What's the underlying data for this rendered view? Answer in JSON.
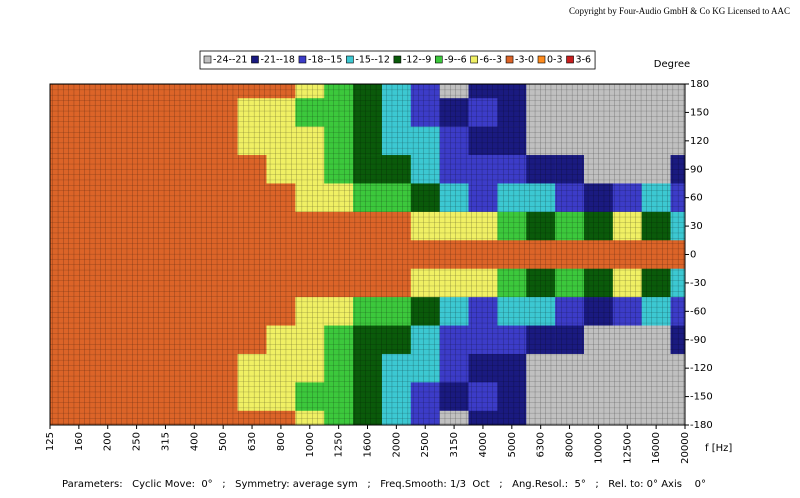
{
  "chart_data": {
    "type": "contour",
    "copyright": "Copyright by Four-Audio GmbH & Co KG   Licensed to AAC",
    "x_label": "f [Hz]",
    "y_label": "Degree",
    "footer": "Parameters:   Cyclic Move:  0°   ;   Symmetry: average sym   ;   Freq.Smooth: 1/3  Oct   ;   Ang.Resol.:  5°   ;   Rel. to: 0° Axis    0°",
    "categories": [
      125,
      160,
      200,
      250,
      315,
      400,
      500,
      630,
      800,
      1000,
      1250,
      1600,
      2000,
      2500,
      3150,
      4000,
      5000,
      6300,
      8000,
      10000,
      12500,
      16000,
      20000
    ],
    "ylim": [
      -180,
      180
    ],
    "yticks": [
      180,
      150,
      120,
      90,
      60,
      30,
      0,
      -30,
      -60,
      -90,
      -120,
      -150,
      -180
    ],
    "y": [
      180,
      150,
      120,
      90,
      60,
      30,
      0,
      -30,
      -60,
      -90,
      -120,
      -150,
      -180
    ],
    "levels": [
      -24,
      -21,
      -18,
      -15,
      -12,
      -9,
      -6,
      -3,
      0,
      3,
      6
    ],
    "legend": [
      {
        "name": "-24--21",
        "color": "#c0c0c0"
      },
      {
        "name": "-21--18",
        "color": "#1a1a80"
      },
      {
        "name": "-18--15",
        "color": "#3c3cc8"
      },
      {
        "name": "-15--12",
        "color": "#3cc8d2"
      },
      {
        "name": "-12--9",
        "color": "#0a5a0a"
      },
      {
        "name": "-9--6",
        "color": "#3cc83c"
      },
      {
        "name": "-6--3",
        "color": "#f0f064"
      },
      {
        "name": "-3-0",
        "color": "#dc6428"
      },
      {
        "name": "0-3",
        "color": "#ff8c1e"
      },
      {
        "name": "3-6",
        "color": "#c81e1e"
      }
    ],
    "z": [
      [
        -1.5,
        -1.5,
        -1.5,
        -1.5,
        -1.5,
        -1.5,
        -1.5,
        -1.5,
        -1.5,
        -4.5,
        -7.5,
        -10.5,
        -13.5,
        -16.5,
        -22.5,
        -19.5,
        -19.5,
        -22.5,
        -22.5,
        -22.5,
        -22.5,
        -22.5,
        -22.5
      ],
      [
        -1.5,
        -1.5,
        -1.5,
        -1.5,
        -1.5,
        -1.5,
        -1.5,
        -4.5,
        -4.5,
        -7.5,
        -7.5,
        -10.5,
        -13.5,
        -16.5,
        -19.5,
        -16.5,
        -19.5,
        -22.5,
        -22.5,
        -22.5,
        -22.5,
        -22.5,
        -22.5
      ],
      [
        -1.5,
        -1.5,
        -1.5,
        -1.5,
        -1.5,
        -1.5,
        -1.5,
        -4.5,
        -4.5,
        -4.5,
        -7.5,
        -10.5,
        -13.5,
        -13.5,
        -16.5,
        -19.5,
        -19.5,
        -22.5,
        -22.5,
        -22.5,
        -22.5,
        -22.5,
        -22.5
      ],
      [
        -1.5,
        -1.5,
        -1.5,
        -1.5,
        -1.5,
        -1.5,
        -1.5,
        -1.5,
        -4.5,
        -4.5,
        -7.5,
        -10.5,
        -10.5,
        -13.5,
        -16.5,
        -16.5,
        -16.5,
        -19.5,
        -19.5,
        -22.5,
        -22.5,
        -22.5,
        -19.5
      ],
      [
        -1.5,
        -1.5,
        -1.5,
        -1.5,
        -1.5,
        -1.5,
        -1.5,
        -1.5,
        -1.5,
        -4.5,
        -4.5,
        -7.5,
        -7.5,
        -10.5,
        -13.5,
        -16.5,
        -13.5,
        -13.5,
        -16.5,
        -19.5,
        -16.5,
        -13.5,
        -16.5
      ],
      [
        -1.5,
        -1.5,
        -1.5,
        -1.5,
        -1.5,
        -1.5,
        -1.5,
        -1.5,
        -1.5,
        -1.5,
        -1.5,
        -1.5,
        -1.5,
        -4.5,
        -4.5,
        -4.5,
        -7.5,
        -10.5,
        -7.5,
        -10.5,
        -4.5,
        -10.5,
        -13.5
      ],
      [
        -1.5,
        -1.5,
        -1.5,
        -1.5,
        -1.5,
        -1.5,
        -1.5,
        -1.5,
        -1.5,
        -1.5,
        -1.5,
        -1.5,
        -1.5,
        -1.5,
        -1.5,
        -1.5,
        -1.5,
        -1.5,
        -1.5,
        -1.5,
        -1.5,
        -1.5,
        -1.5
      ],
      [
        -1.5,
        -1.5,
        -1.5,
        -1.5,
        -1.5,
        -1.5,
        -1.5,
        -1.5,
        -1.5,
        -1.5,
        -1.5,
        -1.5,
        -1.5,
        -4.5,
        -4.5,
        -4.5,
        -7.5,
        -10.5,
        -7.5,
        -10.5,
        -4.5,
        -10.5,
        -13.5
      ],
      [
        -1.5,
        -1.5,
        -1.5,
        -1.5,
        -1.5,
        -1.5,
        -1.5,
        -1.5,
        -1.5,
        -4.5,
        -4.5,
        -7.5,
        -7.5,
        -10.5,
        -13.5,
        -16.5,
        -13.5,
        -13.5,
        -16.5,
        -19.5,
        -16.5,
        -13.5,
        -16.5
      ],
      [
        -1.5,
        -1.5,
        -1.5,
        -1.5,
        -1.5,
        -1.5,
        -1.5,
        -1.5,
        -4.5,
        -4.5,
        -7.5,
        -10.5,
        -10.5,
        -13.5,
        -16.5,
        -16.5,
        -16.5,
        -19.5,
        -19.5,
        -22.5,
        -22.5,
        -22.5,
        -19.5
      ],
      [
        -1.5,
        -1.5,
        -1.5,
        -1.5,
        -1.5,
        -1.5,
        -1.5,
        -4.5,
        -4.5,
        -4.5,
        -7.5,
        -10.5,
        -13.5,
        -13.5,
        -16.5,
        -19.5,
        -19.5,
        -22.5,
        -22.5,
        -22.5,
        -22.5,
        -22.5,
        -22.5
      ],
      [
        -1.5,
        -1.5,
        -1.5,
        -1.5,
        -1.5,
        -1.5,
        -1.5,
        -4.5,
        -4.5,
        -7.5,
        -7.5,
        -10.5,
        -13.5,
        -16.5,
        -19.5,
        -16.5,
        -19.5,
        -22.5,
        -22.5,
        -22.5,
        -22.5,
        -22.5,
        -22.5
      ],
      [
        -1.5,
        -1.5,
        -1.5,
        -1.5,
        -1.5,
        -1.5,
        -1.5,
        -1.5,
        -1.5,
        -4.5,
        -7.5,
        -10.5,
        -13.5,
        -16.5,
        -22.5,
        -19.5,
        -19.5,
        -22.5,
        -22.5,
        -22.5,
        -22.5,
        -22.5,
        -22.5
      ]
    ]
  }
}
